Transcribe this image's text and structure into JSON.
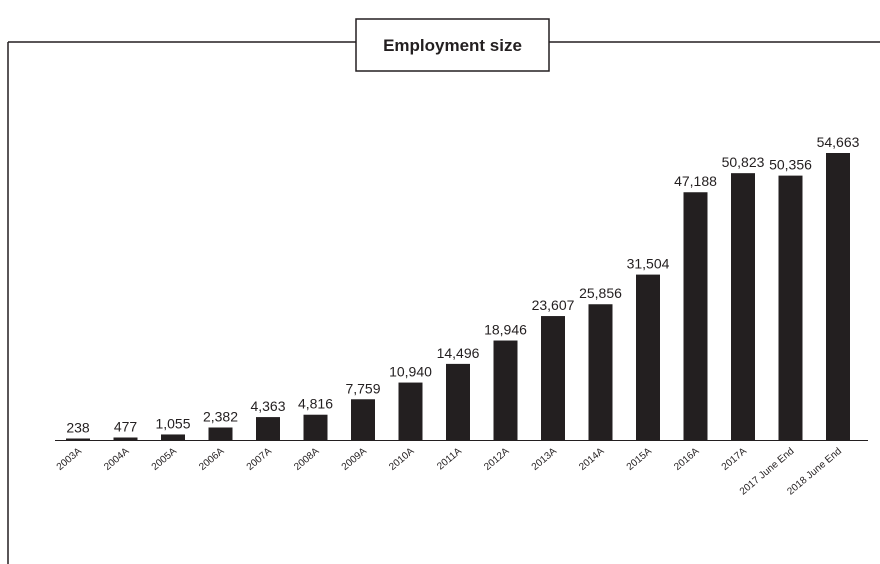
{
  "chart_data": {
    "type": "bar",
    "title": "Employment size",
    "xlabel": "",
    "ylabel": "",
    "categories": [
      "2003A",
      "2004A",
      "2005A",
      "2006A",
      "2007A",
      "2008A",
      "2009A",
      "2010A",
      "2011A",
      "2012A",
      "2013A",
      "2014A",
      "2015A",
      "2016A",
      "2017A",
      "2017 June End",
      "2018 June End"
    ],
    "values": [
      238,
      477,
      1055,
      2382,
      4363,
      4816,
      7759,
      10940,
      14496,
      18946,
      23607,
      25856,
      31504,
      47188,
      50823,
      50356,
      54663
    ],
    "data_labels": [
      "238",
      "477",
      "1,055",
      "2,382",
      "4,363",
      "4,816",
      "7,759",
      "10,940",
      "14,496",
      "18,946",
      "23,607",
      "25,856",
      "31,504",
      "47,188",
      "50,823",
      "50,356",
      "54,663"
    ],
    "ylim": [
      0,
      54663
    ],
    "grid": false,
    "bar_color": "#231f20"
  }
}
